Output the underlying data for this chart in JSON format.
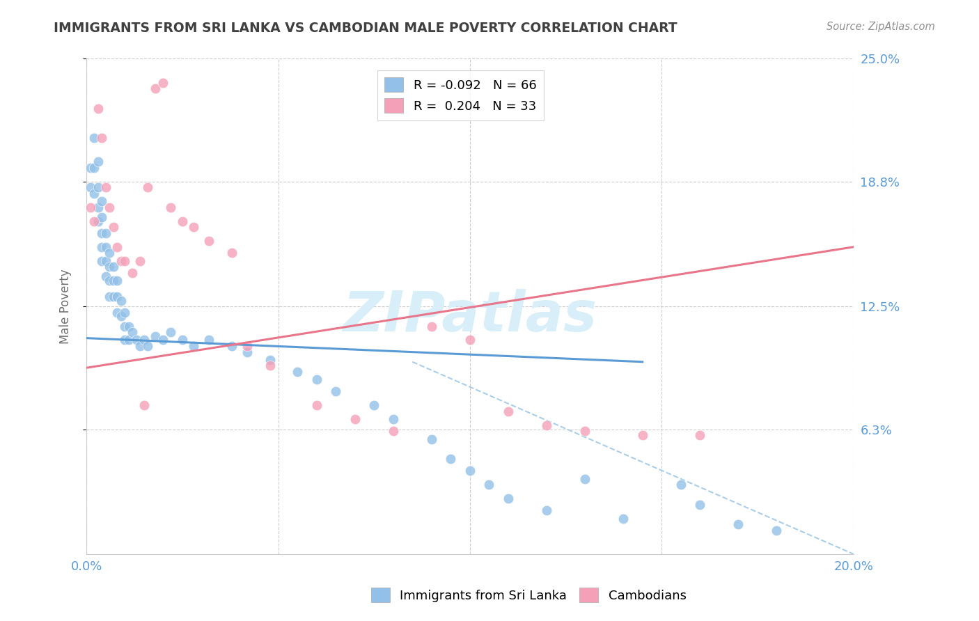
{
  "title": "IMMIGRANTS FROM SRI LANKA VS CAMBODIAN MALE POVERTY CORRELATION CHART",
  "source": "Source: ZipAtlas.com",
  "ylabel": "Male Poverty",
  "xlim": [
    0.0,
    0.2
  ],
  "ylim": [
    0.0,
    0.25
  ],
  "ytick_labels": [
    "6.3%",
    "12.5%",
    "18.8%",
    "25.0%"
  ],
  "ytick_values": [
    0.063,
    0.125,
    0.188,
    0.25
  ],
  "color_blue": "#92C0E8",
  "color_pink": "#F4A0B8",
  "color_line_blue": "#5B9BD5",
  "color_line_pink": "#E8758A",
  "color_line_dashed": "#AACDE8",
  "color_axis_labels": "#5B9BD5",
  "color_title": "#404040",
  "color_source": "#909090",
  "color_watermark": "#D8EEF8",
  "watermark": "ZIPatlas",
  "background_color": "#FFFFFF",
  "grid_color": "#CCCCCC",
  "blue_points_x": [
    0.001,
    0.001,
    0.002,
    0.002,
    0.002,
    0.003,
    0.003,
    0.003,
    0.003,
    0.004,
    0.004,
    0.004,
    0.004,
    0.004,
    0.005,
    0.005,
    0.005,
    0.005,
    0.006,
    0.006,
    0.006,
    0.006,
    0.007,
    0.007,
    0.007,
    0.008,
    0.008,
    0.008,
    0.009,
    0.009,
    0.01,
    0.01,
    0.01,
    0.011,
    0.011,
    0.012,
    0.013,
    0.014,
    0.015,
    0.016,
    0.018,
    0.02,
    0.022,
    0.025,
    0.028,
    0.032,
    0.038,
    0.042,
    0.048,
    0.055,
    0.06,
    0.065,
    0.075,
    0.08,
    0.09,
    0.095,
    0.1,
    0.105,
    0.11,
    0.12,
    0.13,
    0.14,
    0.155,
    0.16,
    0.17,
    0.18
  ],
  "blue_points_y": [
    0.195,
    0.185,
    0.21,
    0.195,
    0.182,
    0.198,
    0.185,
    0.175,
    0.168,
    0.178,
    0.17,
    0.162,
    0.155,
    0.148,
    0.162,
    0.155,
    0.148,
    0.14,
    0.152,
    0.145,
    0.138,
    0.13,
    0.145,
    0.138,
    0.13,
    0.138,
    0.13,
    0.122,
    0.128,
    0.12,
    0.122,
    0.115,
    0.108,
    0.115,
    0.108,
    0.112,
    0.108,
    0.105,
    0.108,
    0.105,
    0.11,
    0.108,
    0.112,
    0.108,
    0.105,
    0.108,
    0.105,
    0.102,
    0.098,
    0.092,
    0.088,
    0.082,
    0.075,
    0.068,
    0.058,
    0.048,
    0.042,
    0.035,
    0.028,
    0.022,
    0.038,
    0.018,
    0.035,
    0.025,
    0.015,
    0.012
  ],
  "pink_points_x": [
    0.001,
    0.002,
    0.003,
    0.004,
    0.005,
    0.006,
    0.007,
    0.008,
    0.009,
    0.01,
    0.012,
    0.014,
    0.016,
    0.018,
    0.02,
    0.022,
    0.025,
    0.028,
    0.032,
    0.038,
    0.042,
    0.048,
    0.015,
    0.06,
    0.07,
    0.08,
    0.09,
    0.1,
    0.11,
    0.12,
    0.13,
    0.145,
    0.16
  ],
  "pink_points_y": [
    0.175,
    0.168,
    0.225,
    0.21,
    0.185,
    0.175,
    0.165,
    0.155,
    0.148,
    0.148,
    0.142,
    0.148,
    0.185,
    0.235,
    0.238,
    0.175,
    0.168,
    0.165,
    0.158,
    0.152,
    0.105,
    0.095,
    0.075,
    0.075,
    0.068,
    0.062,
    0.115,
    0.108,
    0.072,
    0.065,
    0.062,
    0.06,
    0.06
  ],
  "blue_line_x": [
    0.0,
    0.145
  ],
  "blue_line_y": [
    0.109,
    0.097
  ],
  "pink_line_x": [
    0.0,
    0.2
  ],
  "pink_line_y": [
    0.094,
    0.155
  ],
  "dashed_line_x": [
    0.085,
    0.2
  ],
  "dashed_line_y": [
    0.097,
    0.0
  ],
  "legend_entries": [
    {
      "label": "R = -0.092   N = 66",
      "color": "#92C0E8"
    },
    {
      "label": "R =  0.204   N = 33",
      "color": "#F4A0B8"
    }
  ]
}
